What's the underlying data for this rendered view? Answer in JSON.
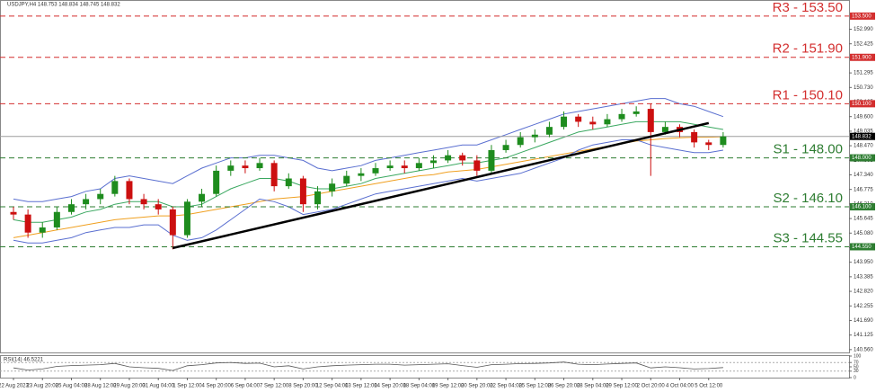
{
  "chart_data": {
    "type": "candlestick",
    "title": "USDJPY,H4  148.753 148.834 148.745 148.832",
    "categories": [
      "22 Aug 2023",
      null,
      "23 Aug 20:00",
      null,
      "25 Aug 04:00",
      null,
      "28 Aug 12:00",
      null,
      "29 Aug 20:00",
      null,
      "31 Aug 04:00",
      null,
      "1 Sep 12:00",
      null,
      "4 Sep 20:00",
      null,
      "6 Sep 04:00",
      null,
      "7 Sep 12:00",
      null,
      "8 Sep 20:00",
      null,
      "12 Sep 04:00",
      null,
      "13 Sep 12:00",
      null,
      "14 Sep 20:00",
      null,
      "18 Sep 04:00",
      null,
      "19 Sep 12:00",
      null,
      "20 Sep 20:00",
      null,
      "22 Sep 04:00",
      null,
      "25 Sep 12:00",
      null,
      "26 Sep 20:00",
      null,
      "28 Sep 04:00",
      null,
      "29 Sep 12:00",
      null,
      "2 Oct 20:00",
      null,
      "4 Oct 04:00",
      null,
      "5 Oct 12:00",
      null
    ],
    "open": [
      145.9,
      145.8,
      145.1,
      145.3,
      145.9,
      146.2,
      146.4,
      146.6,
      147.1,
      146.4,
      146.2,
      146.0,
      145.0,
      146.3,
      146.6,
      147.5,
      147.7,
      147.6,
      147.8,
      146.9,
      147.2,
      146.2,
      146.7,
      147.0,
      147.3,
      147.4,
      147.6,
      147.7,
      147.6,
      147.8,
      147.9,
      148.1,
      147.9,
      147.5,
      148.3,
      148.5,
      148.8,
      148.9,
      149.2,
      149.6,
      149.4,
      149.3,
      149.5,
      149.7,
      149.9,
      149.0,
      149.2,
      149.0,
      148.6,
      148.5
    ],
    "high": [
      146.1,
      146.0,
      145.5,
      146.1,
      146.4,
      146.6,
      146.8,
      147.3,
      147.2,
      146.6,
      146.4,
      146.1,
      146.4,
      146.8,
      147.7,
      147.9,
      147.9,
      148.0,
      147.9,
      147.4,
      147.3,
      146.9,
      147.2,
      147.5,
      147.6,
      147.8,
      147.9,
      147.9,
      148.0,
      148.1,
      148.3,
      148.2,
      148.1,
      148.5,
      148.7,
      149.0,
      149.1,
      149.4,
      149.8,
      149.7,
      149.6,
      149.7,
      149.9,
      150.0,
      150.1,
      149.4,
      149.3,
      149.1,
      148.7,
      149.0
    ],
    "low": [
      145.6,
      144.9,
      144.9,
      145.2,
      145.8,
      146.0,
      146.2,
      146.5,
      146.2,
      146.0,
      145.8,
      144.45,
      144.9,
      146.1,
      146.5,
      147.3,
      147.4,
      147.5,
      146.7,
      146.8,
      145.9,
      146.0,
      146.5,
      146.9,
      147.1,
      147.3,
      147.5,
      147.4,
      147.5,
      147.6,
      147.8,
      147.7,
      147.3,
      147.4,
      148.2,
      148.4,
      148.6,
      148.8,
      149.1,
      149.2,
      149.1,
      149.2,
      149.4,
      149.6,
      147.3,
      148.9,
      148.8,
      148.4,
      148.3,
      148.4
    ],
    "close": [
      145.8,
      145.1,
      145.3,
      145.9,
      146.2,
      146.4,
      146.6,
      147.1,
      146.4,
      146.2,
      146.0,
      145.0,
      146.3,
      146.6,
      147.5,
      147.7,
      147.6,
      147.8,
      146.9,
      147.2,
      146.2,
      146.7,
      147.0,
      147.3,
      147.4,
      147.6,
      147.7,
      147.6,
      147.8,
      147.9,
      148.1,
      147.9,
      147.5,
      148.3,
      148.5,
      148.8,
      148.9,
      149.2,
      149.6,
      149.4,
      149.3,
      149.5,
      149.7,
      149.8,
      149.0,
      149.2,
      149.0,
      148.6,
      148.5,
      148.83
    ],
    "up_color": "#1e8c1e",
    "down_color": "#cc1010",
    "lines": [
      {
        "color": "#f0a020",
        "values": [
          144.9,
          145.0,
          145.1,
          145.2,
          145.3,
          145.4,
          145.5,
          145.6,
          145.65,
          145.7,
          145.75,
          145.75,
          145.8,
          145.9,
          146.0,
          146.1,
          146.2,
          146.3,
          146.4,
          146.45,
          146.5,
          146.6,
          146.7,
          146.8,
          146.9,
          147.0,
          147.1,
          147.2,
          147.3,
          147.35,
          147.45,
          147.5,
          147.55,
          147.65,
          147.75,
          147.85,
          147.95,
          148.05,
          148.15,
          148.25,
          148.35,
          148.45,
          148.55,
          148.65,
          148.7,
          148.75,
          148.78,
          148.8,
          148.8,
          148.82
        ]
      },
      {
        "color": "#3aa860",
        "values": [
          145.6,
          145.5,
          145.5,
          145.6,
          145.7,
          145.9,
          146.0,
          146.2,
          146.3,
          146.3,
          146.3,
          146.1,
          146.1,
          146.2,
          146.5,
          146.8,
          147.0,
          147.2,
          147.2,
          147.1,
          146.9,
          146.8,
          146.8,
          146.9,
          147.0,
          147.2,
          147.3,
          147.4,
          147.5,
          147.6,
          147.7,
          147.8,
          147.8,
          147.9,
          148.0,
          148.2,
          148.4,
          148.6,
          148.8,
          149.0,
          149.1,
          149.2,
          149.3,
          149.4,
          149.4,
          149.4,
          149.4,
          149.3,
          149.2,
          149.1
        ]
      },
      {
        "color": "#5a6fd0",
        "values": [
          146.4,
          146.3,
          146.3,
          146.4,
          146.5,
          146.7,
          146.8,
          147.2,
          147.3,
          147.2,
          147.1,
          147.0,
          147.3,
          147.6,
          147.8,
          148.0,
          148.0,
          148.1,
          148.1,
          148.0,
          147.9,
          147.6,
          147.5,
          147.6,
          147.7,
          147.9,
          148.0,
          148.1,
          148.2,
          148.3,
          148.4,
          148.5,
          148.5,
          148.7,
          148.9,
          149.1,
          149.3,
          149.5,
          149.7,
          149.8,
          149.9,
          150.0,
          150.1,
          150.2,
          150.3,
          150.3,
          150.1,
          150.0,
          149.8,
          149.6
        ]
      },
      {
        "color": "#5a6fd0",
        "values": [
          144.8,
          144.7,
          144.7,
          144.8,
          144.9,
          145.1,
          145.2,
          145.3,
          145.3,
          145.4,
          145.4,
          145.0,
          144.8,
          144.9,
          145.2,
          145.6,
          146.0,
          146.4,
          146.3,
          146.1,
          145.8,
          145.9,
          146.0,
          146.2,
          146.4,
          146.6,
          146.7,
          146.8,
          146.9,
          147.0,
          147.1,
          147.2,
          147.1,
          147.2,
          147.3,
          147.4,
          147.6,
          147.8,
          148.0,
          148.3,
          148.5,
          148.6,
          148.7,
          148.7,
          148.5,
          148.4,
          148.3,
          148.2,
          148.2,
          148.3
        ]
      }
    ],
    "trendline": {
      "color": "#000000",
      "x": [
        11,
        48
      ],
      "y": [
        144.5,
        149.35
      ]
    },
    "levels": [
      {
        "label": "R3 - 153.50",
        "tag": "153.500",
        "value": 153.5,
        "color": "#d32f2f"
      },
      {
        "label": "R2 - 151.90",
        "tag": "151.900",
        "value": 151.9,
        "color": "#d32f2f"
      },
      {
        "label": "R1 - 150.10",
        "tag": "150.100",
        "value": 150.1,
        "color": "#d32f2f"
      },
      {
        "label": "S1 - 148.00",
        "tag": "148.000",
        "value": 148.0,
        "color": "#2e7d32"
      },
      {
        "label": "S2 - 146.10",
        "tag": "146.100",
        "value": 146.1,
        "color": "#2e7d32"
      },
      {
        "label": "S3 - 144.55",
        "tag": "144.550",
        "value": 144.55,
        "color": "#2e7d32"
      }
    ],
    "last_price": {
      "tag": "148.832",
      "value": 148.832,
      "color": "#9e9e9e"
    },
    "ylim": [
      140.45,
      153.95
    ],
    "yticks": [
      {
        "value": 152.99,
        "label": "152.990"
      },
      {
        "value": 152.425,
        "label": "152.425"
      },
      {
        "value": 151.86,
        "label": "151.860"
      },
      {
        "value": 151.295,
        "label": "151.295"
      },
      {
        "value": 150.73,
        "label": "150.730"
      },
      {
        "value": 150.165,
        "label": "150.165"
      },
      {
        "value": 149.6,
        "label": "149.600"
      },
      {
        "value": 149.035,
        "label": "149.035"
      },
      {
        "value": 148.47,
        "label": "148.470"
      },
      {
        "value": 147.905,
        "label": "147.905"
      },
      {
        "value": 147.34,
        "label": "147.340"
      },
      {
        "value": 146.775,
        "label": "146.775"
      },
      {
        "value": 146.21,
        "label": "146.210"
      },
      {
        "value": 145.645,
        "label": "145.645"
      },
      {
        "value": 145.08,
        "label": "145.080"
      },
      {
        "value": 144.515,
        "label": "144.515"
      },
      {
        "value": 143.95,
        "label": "143.950"
      },
      {
        "value": 143.385,
        "label": "143.385"
      },
      {
        "value": 142.82,
        "label": "142.820"
      },
      {
        "value": 142.255,
        "label": "142.255"
      },
      {
        "value": 141.69,
        "label": "141.690"
      },
      {
        "value": 141.125,
        "label": "141.125"
      },
      {
        "value": 140.56,
        "label": "140.560"
      }
    ],
    "rsi": {
      "label": "RSI(14) 46.5221",
      "color": "#555555",
      "values": [
        45,
        35,
        40,
        52,
        56,
        58,
        60,
        66,
        50,
        46,
        43,
        33,
        55,
        60,
        68,
        70,
        66,
        67,
        50,
        55,
        40,
        50,
        55,
        58,
        60,
        62,
        62,
        58,
        60,
        62,
        64,
        56,
        48,
        60,
        62,
        65,
        66,
        68,
        72,
        62,
        60,
        63,
        66,
        68,
        45,
        50,
        46,
        40,
        42,
        46.5221
      ],
      "ylim": [
        0,
        100
      ],
      "yticks": [
        100,
        70,
        50,
        30,
        0
      ],
      "dashed_levels": [
        70,
        30
      ]
    }
  }
}
